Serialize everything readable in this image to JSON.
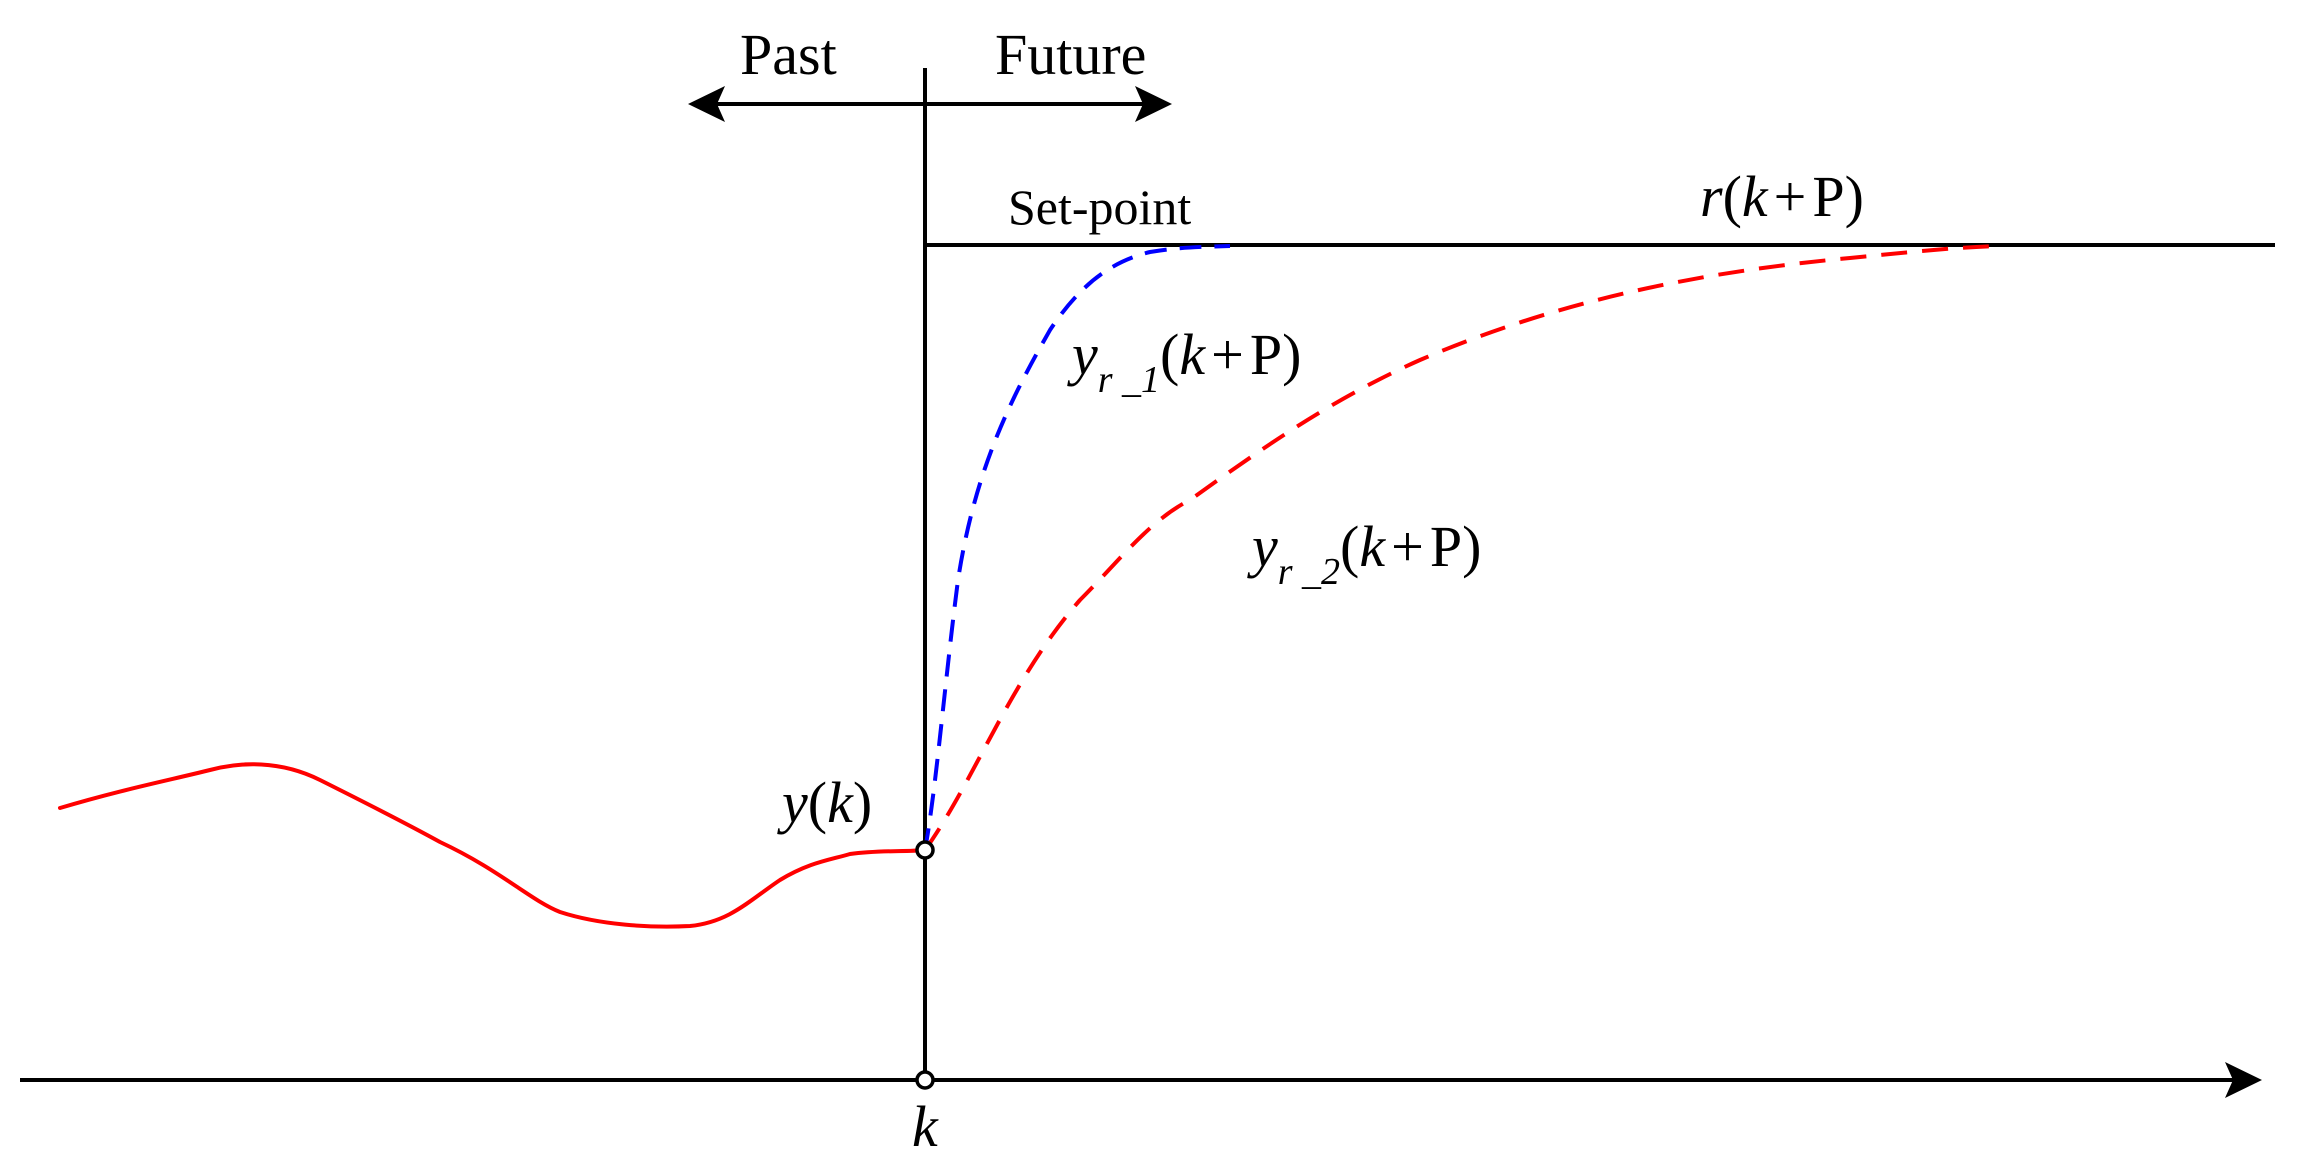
{
  "labels": {
    "past": "Past",
    "future": "Future",
    "set_point": "Set-point",
    "r_k_p": {
      "r": "r",
      "open": "(",
      "k": "k",
      "op": "+",
      "p": "P",
      "close": ")"
    },
    "y_r1": {
      "y": "y",
      "sub": "r _1",
      "open": "(",
      "k": "k",
      "op": "+",
      "p": "P",
      "close": ")"
    },
    "y_r2": {
      "y": "y",
      "sub": "r _2",
      "open": "(",
      "k": "k",
      "op": "+",
      "p": "P",
      "close": ")"
    },
    "y_k": {
      "y": "y",
      "open": "(",
      "k": "k",
      "close": ")"
    },
    "k_axis": "k"
  },
  "curves": {
    "past_output": {
      "color": "#ff0000",
      "style": "solid",
      "meaning": "measured output y(k)"
    },
    "reference_1": {
      "color": "#0000ff",
      "style": "dashed",
      "meaning": "y_r_1(k + P)"
    },
    "reference_2": {
      "color": "#ff0000",
      "style": "dashed",
      "meaning": "y_r_2(k + P)"
    },
    "set_point": {
      "color": "#000000",
      "style": "solid",
      "meaning": "r(k + P)"
    }
  },
  "axis_color": "#000000"
}
